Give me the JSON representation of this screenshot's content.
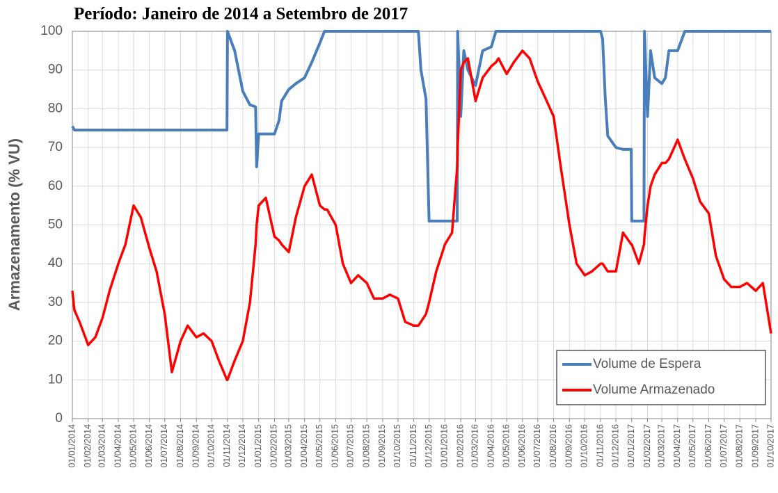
{
  "chart_data": {
    "type": "line",
    "title": "Período: Janeiro de 2014 a Setembro de 2017",
    "ylabel": "Armazenamento (% VU)",
    "xlim": [
      "01/01/2014",
      "01/10/2017"
    ],
    "xticks": [
      "01/01/2014",
      "01/02/2014",
      "01/03/2014",
      "01/04/2014",
      "01/05/2014",
      "01/06/2014",
      "01/07/2014",
      "01/08/2014",
      "01/09/2014",
      "01/10/2014",
      "01/11/2014",
      "01/12/2014",
      "01/01/2015",
      "01/02/2015",
      "01/03/2015",
      "01/04/2015",
      "01/05/2015",
      "01/06/2015",
      "01/07/2015",
      "01/08/2015",
      "01/09/2015",
      "01/10/2015",
      "01/11/2015",
      "01/12/2015",
      "01/01/2016",
      "01/02/2016",
      "01/03/2016",
      "01/04/2016",
      "01/05/2016",
      "01/06/2016",
      "01/07/2016",
      "01/08/2016",
      "01/09/2016",
      "01/10/2016",
      "01/11/2016",
      "01/12/2016",
      "01/01/2017",
      "01/02/2017",
      "01/03/2017",
      "01/04/2017",
      "01/05/2017",
      "01/06/2017",
      "01/07/2017",
      "01/08/2017",
      "01/09/2017",
      "01/10/2017"
    ],
    "ylim": [
      0,
      100
    ],
    "yticks": [
      0,
      10,
      20,
      30,
      40,
      50,
      60,
      70,
      80,
      90,
      100
    ],
    "grid": true,
    "legend": "lower right",
    "x": [
      "01/01/2014",
      "05/01/2014",
      "15/01/2014",
      "01/02/2014",
      "15/02/2014",
      "01/03/2014",
      "15/03/2014",
      "01/04/2014",
      "15/04/2014",
      "01/05/2014",
      "15/05/2014",
      "01/06/2014",
      "15/06/2014",
      "01/07/2014",
      "15/07/2014",
      "01/08/2014",
      "15/08/2014",
      "01/09/2014",
      "15/09/2014",
      "01/10/2014",
      "15/10/2014",
      "31/10/2014",
      "01/11/2014",
      "15/11/2014",
      "01/12/2014",
      "15/12/2014",
      "26/12/2014",
      "28/12/2014",
      "01/01/2015",
      "15/01/2015",
      "01/02/2015",
      "10/02/2015",
      "15/02/2015",
      "01/03/2015",
      "15/03/2015",
      "01/04/2015",
      "15/04/2015",
      "01/05/2015",
      "10/05/2015",
      "15/05/2015",
      "01/06/2015",
      "15/06/2015",
      "01/07/2015",
      "15/07/2015",
      "01/08/2015",
      "15/08/2015",
      "01/09/2015",
      "15/09/2015",
      "01/10/2015",
      "15/10/2015",
      "01/11/2015",
      "10/11/2015",
      "15/11/2015",
      "25/11/2015",
      "01/12/2015",
      "15/12/2015",
      "01/01/2016",
      "15/01/2016",
      "25/01/2016",
      "26/01/2016",
      "01/02/2016",
      "07/02/2016",
      "15/02/2016",
      "01/03/2016",
      "15/03/2016",
      "01/04/2016",
      "10/04/2016",
      "15/04/2016",
      "01/05/2016",
      "15/05/2016",
      "01/06/2016",
      "15/06/2016",
      "01/07/2016",
      "15/07/2016",
      "01/08/2016",
      "15/08/2016",
      "01/09/2016",
      "15/09/2016",
      "01/10/2016",
      "15/10/2016",
      "01/11/2016",
      "05/11/2016",
      "10/11/2016",
      "15/11/2016",
      "01/12/2016",
      "15/12/2016",
      "31/12/2016",
      "01/01/2017",
      "15/01/2017",
      "25/01/2017",
      "26/01/2017",
      "01/02/2017",
      "07/02/2017",
      "15/02/2017",
      "01/03/2017",
      "08/03/2017",
      "15/03/2017",
      "01/04/2017",
      "15/04/2017",
      "01/05/2017",
      "15/05/2017",
      "01/06/2017",
      "15/06/2017",
      "01/07/2017",
      "15/07/2017",
      "01/08/2017",
      "15/08/2017",
      "01/09/2017",
      "15/09/2017",
      "01/10/2017"
    ],
    "series": [
      {
        "name": "Volume de Espera",
        "color": "#4a7ebb",
        "values": [
          75.5,
          74.5,
          74.5,
          74.5,
          74.5,
          74.5,
          74.5,
          74.5,
          74.5,
          74.5,
          74.5,
          74.5,
          74.5,
          74.5,
          74.5,
          74.5,
          74.5,
          74.5,
          74.5,
          74.5,
          74.5,
          74.5,
          100,
          95,
          84.5,
          81,
          80.5,
          65,
          73.5,
          73.5,
          73.5,
          77,
          82,
          85,
          86.5,
          88,
          92,
          97,
          100,
          100,
          100,
          100,
          100,
          100,
          100,
          100,
          100,
          100,
          100,
          100,
          100,
          100,
          90,
          82.5,
          51,
          51,
          51,
          51,
          51,
          100,
          78,
          95,
          90,
          86,
          95,
          96,
          100,
          100,
          100,
          100,
          100,
          100,
          100,
          100,
          100,
          100,
          100,
          100,
          100,
          100,
          100,
          98,
          83,
          73,
          70,
          69.5,
          69.5,
          51,
          51,
          51,
          100,
          78,
          95,
          88,
          86.5,
          88,
          95,
          95,
          100,
          100,
          100,
          100,
          100,
          100,
          100,
          100,
          100,
          100,
          100,
          100
        ]
      },
      {
        "name": "Volume Armazenado",
        "color": "#ff0000",
        "values": [
          33,
          28,
          25,
          19,
          21,
          26,
          33,
          40,
          45,
          55,
          52,
          44,
          38,
          27,
          12,
          20,
          24,
          21,
          22,
          20,
          15,
          10,
          10,
          15,
          20,
          30,
          45,
          50,
          55,
          57,
          47,
          46,
          45,
          43,
          52,
          60,
          63,
          55,
          54,
          54,
          50,
          40,
          35,
          37,
          35,
          31,
          31,
          32,
          31,
          25,
          24,
          24,
          25,
          27,
          30,
          38,
          45,
          48,
          65,
          70,
          90,
          92,
          93,
          82,
          88,
          91,
          92,
          93,
          89,
          92,
          95,
          93,
          87,
          83,
          78,
          65,
          50,
          40,
          37,
          38,
          40,
          40,
          39,
          38,
          38,
          48,
          45,
          45,
          40,
          45,
          47,
          55,
          60,
          63,
          66,
          66,
          67,
          72,
          67,
          62,
          56,
          53,
          42,
          36,
          34,
          34,
          35,
          33,
          35,
          22
        ]
      }
    ]
  }
}
